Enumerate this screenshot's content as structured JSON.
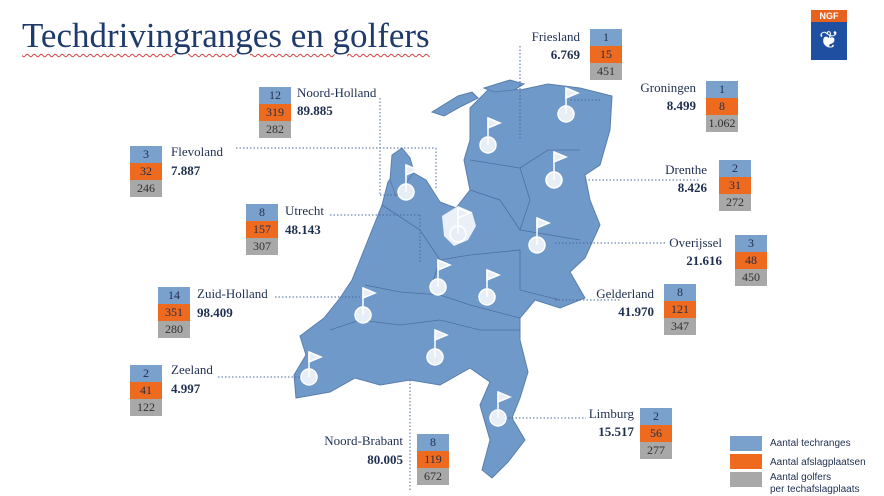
{
  "title": "Techdrivingranges en golfers",
  "logo": {
    "text": "NGF",
    "icon": "lion-shield-icon"
  },
  "colors": {
    "techranges": "#7aa0cc",
    "afslagplaatsen": "#ee6a1e",
    "golfers": "#a8a8a8",
    "map": "#6f99c9",
    "title": "#1f3b6b"
  },
  "provinces": [
    {
      "name": "Friesland",
      "total": "6.769",
      "ranges": "1",
      "bays": "15",
      "golfers": "451"
    },
    {
      "name": "Groningen",
      "total": "8.499",
      "ranges": "1",
      "bays": "8",
      "golfers": "1.062"
    },
    {
      "name": "Noord-Holland",
      "total": "89.885",
      "ranges": "12",
      "bays": "319",
      "golfers": "282"
    },
    {
      "name": "Flevoland",
      "total": "7.887",
      "ranges": "3",
      "bays": "32",
      "golfers": "246"
    },
    {
      "name": "Drenthe",
      "total": "8.426",
      "ranges": "2",
      "bays": "31",
      "golfers": "272"
    },
    {
      "name": "Utrecht",
      "total": "48.143",
      "ranges": "8",
      "bays": "157",
      "golfers": "307"
    },
    {
      "name": "Overijssel",
      "total": "21.616",
      "ranges": "3",
      "bays": "48",
      "golfers": "450"
    },
    {
      "name": "Zuid-Holland",
      "total": "98.409",
      "ranges": "14",
      "bays": "351",
      "golfers": "280"
    },
    {
      "name": "Gelderland",
      "total": "41.970",
      "ranges": "8",
      "bays": "121",
      "golfers": "347"
    },
    {
      "name": "Zeeland",
      "total": "4.997",
      "ranges": "2",
      "bays": "41",
      "golfers": "122"
    },
    {
      "name": "Limburg",
      "total": "15.517",
      "ranges": "2",
      "bays": "56",
      "golfers": "277"
    },
    {
      "name": "Noord-Brabant",
      "total": "80.005",
      "ranges": "8",
      "bays": "119",
      "golfers": "672"
    }
  ],
  "legend": {
    "techranges": "Aantal techranges",
    "afslagplaatsen": "Aantal afslagplaatsen",
    "golfers_line1": "Aantal golfers",
    "golfers_line2": "per techafslagplaats"
  }
}
